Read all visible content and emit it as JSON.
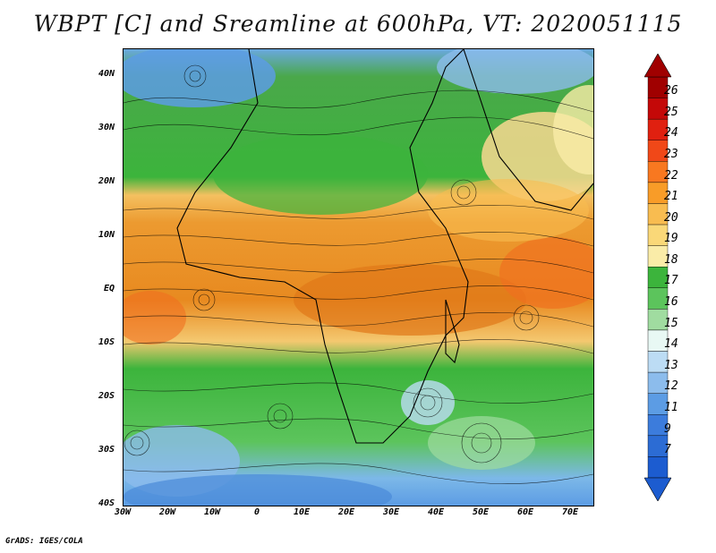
{
  "title": "WBPT [C] and Sreamline at 600hPa, VT: 2020051115",
  "credit": "GrADS: IGES/COLA",
  "map": {
    "lat_labels": [
      "40N",
      "30N",
      "20N",
      "10N",
      "EQ",
      "10S",
      "20S",
      "30S",
      "40S"
    ],
    "lon_labels": [
      "30W",
      "20W",
      "10W",
      "0",
      "10E",
      "20E",
      "30E",
      "40E",
      "50E",
      "60E",
      "70E"
    ],
    "lon_range": [
      -30,
      75
    ],
    "lat_range": [
      -40,
      45
    ]
  },
  "colorbar": {
    "labels": [
      "26",
      "25",
      "24",
      "23",
      "22",
      "21",
      "20",
      "19",
      "18",
      "17",
      "16",
      "15",
      "14",
      "13",
      "12",
      "11",
      "9",
      "7"
    ],
    "colors": [
      "#a00000",
      "#c40808",
      "#e02010",
      "#f04818",
      "#f87820",
      "#f89c28",
      "#f8bc50",
      "#fad878",
      "#faeca8",
      "#3cb43c",
      "#5cc45c",
      "#a0dca0",
      "#e8f8f4",
      "#bcdcf4",
      "#8cbcec",
      "#5c9ce4",
      "#3c7cdc",
      "#2c6cd4",
      "#1c5cd0"
    ]
  }
}
